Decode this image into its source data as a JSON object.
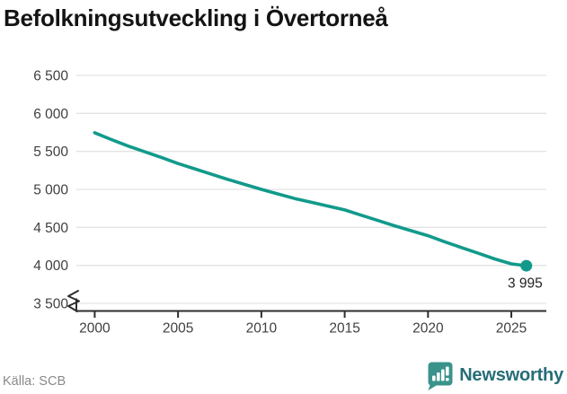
{
  "title": "Befolkningsutveckling i Övertorneå",
  "footer": {
    "source": "Källa: SCB",
    "brand": "Newsworthy"
  },
  "colors": {
    "line": "#119a8b",
    "grid": "#e3e3e3",
    "axis": "#2e2e2e",
    "tick_text": "#3f3f3f",
    "end_label_text": "#222222",
    "brand_icon": "#3a938b",
    "brand_text": "#266d78"
  },
  "chart_data": {
    "type": "line",
    "title": "Befolkningsutveckling i Övertorneå",
    "xlabel": "",
    "ylabel": "",
    "grid": "horizontal",
    "legend": "none",
    "axis_break_below": 3500,
    "xlim": [
      1998.9,
      2027.1
    ],
    "ylim": [
      3500,
      6500
    ],
    "x_ticks": [
      {
        "value": 2000,
        "label": "2000"
      },
      {
        "value": 2005,
        "label": "2005"
      },
      {
        "value": 2010,
        "label": "2010"
      },
      {
        "value": 2015,
        "label": "2015"
      },
      {
        "value": 2020,
        "label": "2020"
      },
      {
        "value": 2025,
        "label": "2025"
      }
    ],
    "y_ticks": [
      {
        "value": 6500,
        "label": "6 500"
      },
      {
        "value": 6000,
        "label": "6 000"
      },
      {
        "value": 5500,
        "label": "5 500"
      },
      {
        "value": 5000,
        "label": "5 000"
      },
      {
        "value": 4500,
        "label": "4 500"
      },
      {
        "value": 4000,
        "label": "4 000"
      },
      {
        "value": 3500,
        "label": "3 500"
      }
    ],
    "x": [
      2000,
      2001,
      2002,
      2003,
      2004,
      2005,
      2006,
      2007,
      2008,
      2009,
      2010,
      2011,
      2012,
      2013,
      2014,
      2015,
      2016,
      2017,
      2018,
      2019,
      2020,
      2021,
      2022,
      2023,
      2024,
      2025,
      2025.9
    ],
    "series": [
      {
        "name": "Befolkning",
        "values": [
          5745,
          5655,
          5570,
          5495,
          5420,
          5340,
          5270,
          5200,
          5130,
          5065,
          5000,
          4940,
          4880,
          4830,
          4780,
          4730,
          4660,
          4590,
          4520,
          4455,
          4390,
          4310,
          4235,
          4160,
          4085,
          4020,
          3995
        ]
      }
    ],
    "end_value": 3995,
    "end_label": "3 995"
  }
}
